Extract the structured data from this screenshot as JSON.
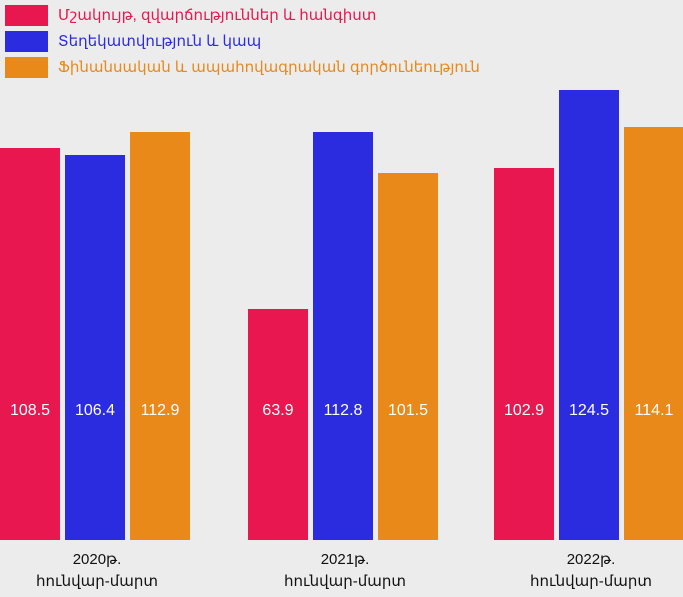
{
  "chart_data": {
    "type": "bar",
    "categories": [
      "2020թ.\nհունվար-մարտ",
      "2021թ.\nհունվար-մարտ",
      "2022թ.\nհունվար-մարտ"
    ],
    "series": [
      {
        "name": "Մշակույթ, զվարճություններ և հանգիստ",
        "color": "#e8174f",
        "values": [
          108.5,
          63.9,
          102.9
        ]
      },
      {
        "name": "Տեղեկատվություն և կապ",
        "color": "#2b2be0",
        "values": [
          106.4,
          112.8,
          124.5
        ]
      },
      {
        "name": "Ֆինանսական և ապահովագրական գործունեություն",
        "color": "#e8891a",
        "values": [
          112.9,
          101.5,
          114.1
        ]
      }
    ],
    "ylim": [
      0,
      130
    ]
  }
}
